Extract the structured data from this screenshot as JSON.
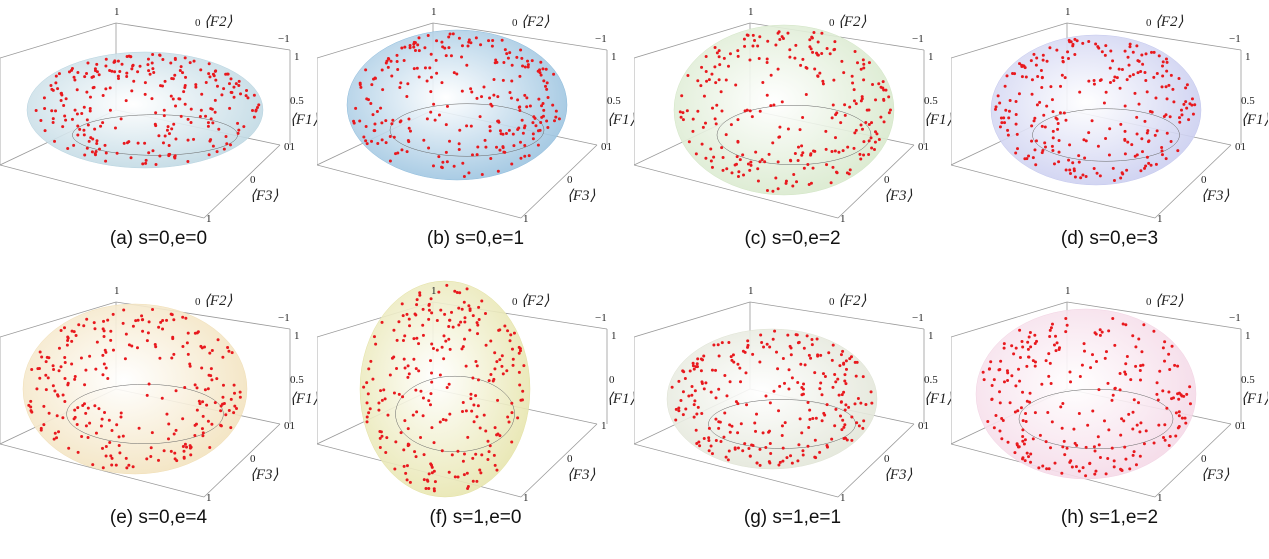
{
  "chart_data": [
    {
      "type": "scatter",
      "panel": "a",
      "caption": "(a) s=0,e=0",
      "surface_color": "#b8d4e0",
      "point_color": "#e8191e",
      "ticks": {
        "F2": [
          "1",
          "0",
          "−1"
        ],
        "F1": [
          "1",
          "0.5",
          "0"
        ],
        "F3": [
          "1",
          "0"
        ]
      },
      "xlabel": "⟨F2⟩",
      "ylabel": "⟨F1⟩",
      "zlabel": "⟨F3⟩"
    },
    {
      "type": "scatter",
      "panel": "b",
      "caption": "(b) s=0,e=1",
      "surface_color": "#8fbcdc",
      "point_color": "#e8191e",
      "ticks": {
        "F2": [
          "1",
          "0",
          "−1"
        ],
        "F1": [
          "1",
          "0.5",
          "0"
        ],
        "F3": [
          "1",
          "0",
          "−1"
        ]
      },
      "xlabel": "⟨F2⟩",
      "ylabel": "⟨F1⟩",
      "zlabel": "⟨F3⟩"
    },
    {
      "type": "scatter",
      "panel": "c",
      "caption": "(c) s=0,e=2",
      "surface_color": "#d3e6c6",
      "point_color": "#e8191e",
      "ticks": {
        "F2": [
          "1",
          "0",
          "−1"
        ],
        "F1": [
          "1",
          "0.5",
          "0"
        ],
        "F3": [
          "1",
          "0",
          "−1"
        ]
      },
      "xlabel": "⟨F2⟩",
      "ylabel": "⟨F1⟩",
      "zlabel": "⟨F3⟩"
    },
    {
      "type": "scatter",
      "panel": "d",
      "caption": "(d) s=0,e=3",
      "surface_color": "#c4c8ee",
      "point_color": "#e8191e",
      "ticks": {
        "F2": [
          "1",
          "0",
          "−1"
        ],
        "F1": [
          "1",
          "0.5",
          "0"
        ],
        "F3": [
          "1",
          "0",
          "−1"
        ]
      },
      "xlabel": "⟨F2⟩",
      "ylabel": "⟨F1⟩",
      "zlabel": "⟨F3⟩"
    },
    {
      "type": "scatter",
      "panel": "e",
      "caption": "(e) s=0,e=4",
      "surface_color": "#f1dfb6",
      "point_color": "#e8191e",
      "ticks": {
        "F2": [
          "1",
          "0",
          "−1"
        ],
        "F1": [
          "1",
          "0.5",
          "0"
        ],
        "F3": [
          "1",
          "0"
        ]
      },
      "xlabel": "⟨F2⟩",
      "ylabel": "⟨F1⟩",
      "zlabel": "⟨F3⟩"
    },
    {
      "type": "scatter",
      "panel": "f",
      "caption": "(f) s=1,e=0",
      "surface_color": "#e4e2a4",
      "point_color": "#e8191e",
      "ticks": {
        "F2": [
          "1",
          "0",
          "−1"
        ],
        "F1": [
          "1",
          "0"
        ],
        "F3": [
          "1",
          "0",
          "−1"
        ]
      },
      "xlabel": "⟨F2⟩",
      "ylabel": "⟨F1⟩",
      "zlabel": "⟨F3⟩"
    },
    {
      "type": "scatter",
      "panel": "g",
      "caption": "(g) s=1,e=1",
      "surface_color": "#dfe3d4",
      "point_color": "#e8191e",
      "ticks": {
        "F2": [
          "1",
          "0",
          "−1"
        ],
        "F1": [
          "1",
          "0.5",
          "0"
        ],
        "F3": [
          "1",
          "0",
          "−1"
        ]
      },
      "xlabel": "⟨F2⟩",
      "ylabel": "⟨F1⟩",
      "zlabel": "⟨F3⟩"
    },
    {
      "type": "scatter",
      "panel": "h",
      "caption": "(h) s=1,e=2",
      "surface_color": "#f3d4e4",
      "point_color": "#e8191e",
      "ticks": {
        "F2": [
          "1",
          "0",
          "−1"
        ],
        "F1": [
          "1",
          "0.5",
          "0"
        ],
        "F3": [
          "1",
          "0"
        ]
      },
      "xlabel": "⟨F2⟩",
      "ylabel": "⟨F1⟩",
      "zlabel": "⟨F3⟩"
    }
  ]
}
